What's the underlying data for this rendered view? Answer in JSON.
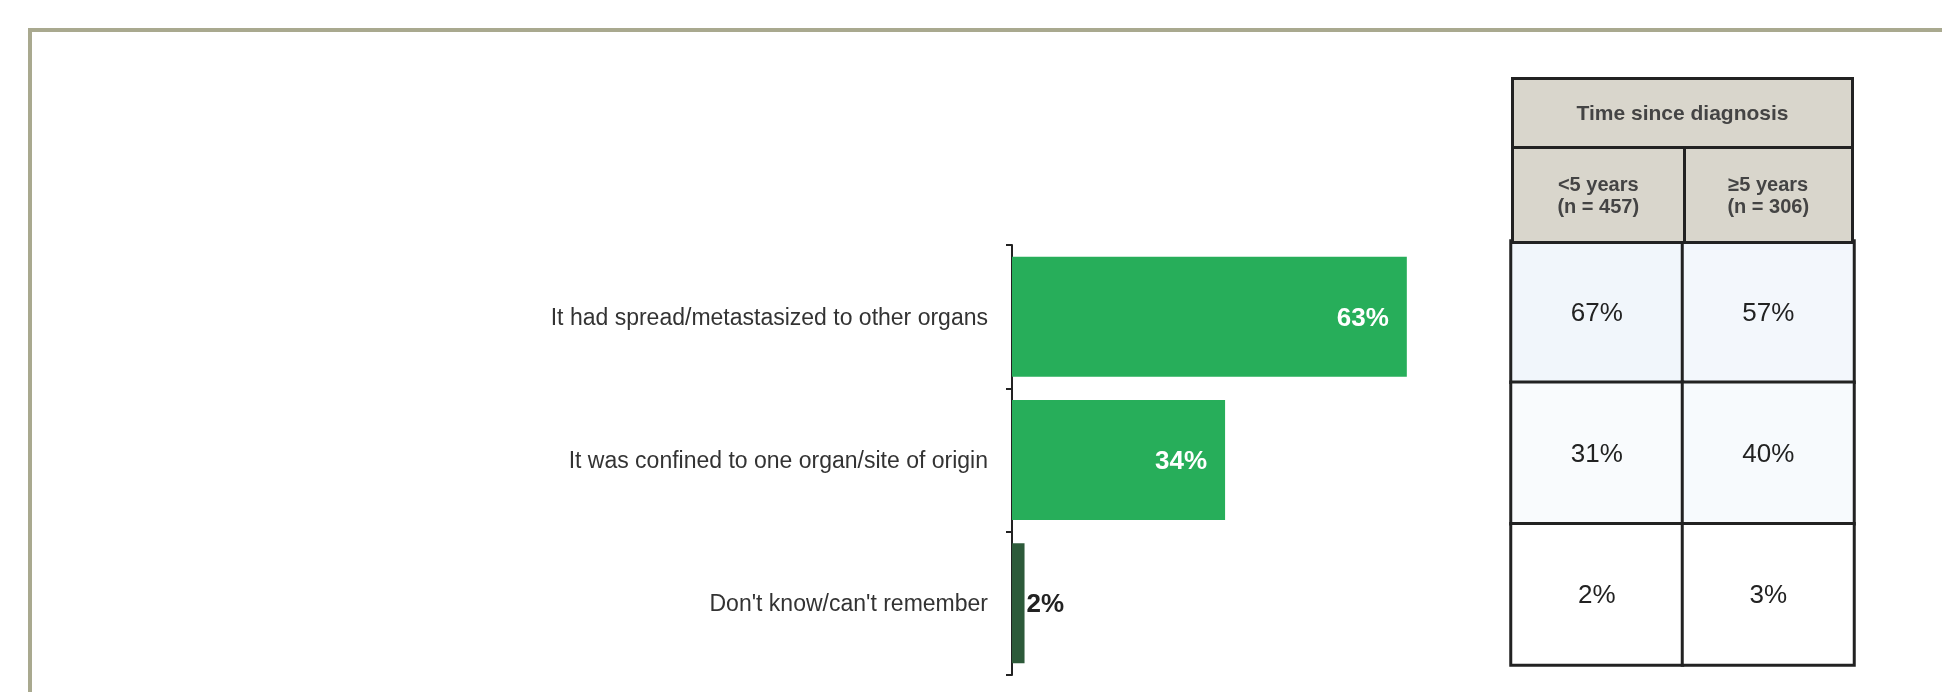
{
  "chart_data": [
    {
      "type": "bar",
      "orientation": "horizontal",
      "categories": [
        "It had spread/metastasized to other organs",
        "It was confined to one organ/site of origin",
        "Don't know/can't remember"
      ],
      "values": [
        63,
        34,
        2
      ],
      "colors": [
        "#27ae5a",
        "#27ae5a",
        "#2d5a3a"
      ],
      "value_labels": [
        "63%",
        "34%",
        "2%"
      ]
    },
    {
      "type": "heatmap",
      "title": "Time since diagnosis",
      "categories": [
        "<5 years\n(n = 457)",
        "≥5 years\n(n = 306)"
      ],
      "y_categories": [
        null,
        null,
        null
      ],
      "cells": [
        [
          67,
          57
        ],
        [
          31,
          40
        ],
        [
          2,
          3
        ]
      ],
      "cell_labels": [
        [
          "67%",
          "57%"
        ],
        [
          "31%",
          "40%"
        ],
        [
          "2%",
          "3%"
        ]
      ],
      "data_labels": true
    }
  ]
}
